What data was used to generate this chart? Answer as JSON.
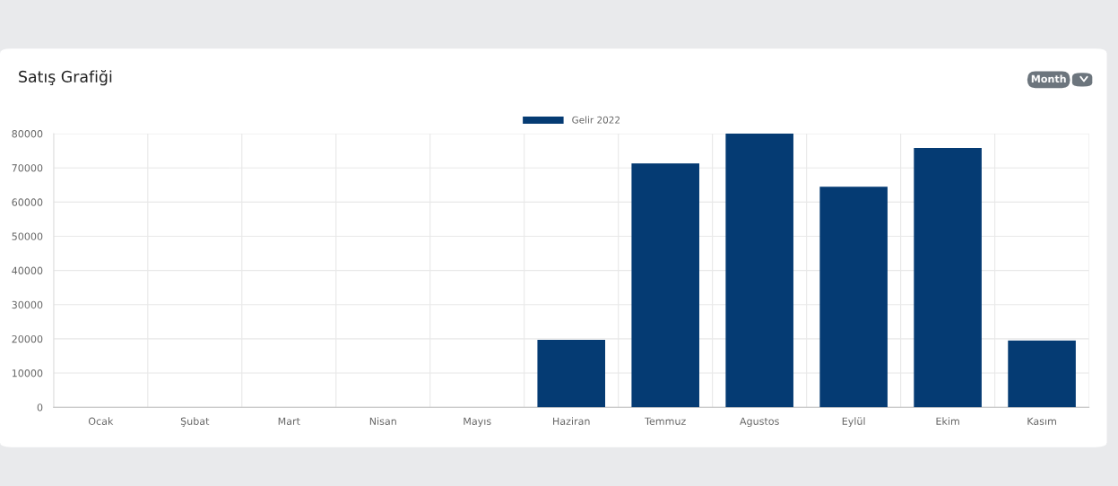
{
  "chart_data": {
    "type": "bar",
    "title": "Satış Grafiği",
    "annotations": [
      "Month"
    ],
    "categories": [
      "Ocak",
      "Şubat",
      "Mart",
      "Nisan",
      "Mayıs",
      "Haziran",
      "Temmuz",
      "Agustos",
      "Eylül",
      "Ekim",
      "Kasım"
    ],
    "series": [
      {
        "name": "Gelir 2022",
        "color": "#053b73",
        "values": [
          0,
          0,
          0,
          0,
          0,
          19700,
          71300,
          80000,
          64500,
          75800,
          19500
        ]
      }
    ],
    "ylim": [
      0,
      80000
    ],
    "yticks": [
      0,
      10000,
      20000,
      30000,
      40000,
      50000,
      60000,
      70000,
      80000
    ],
    "grid": true,
    "legend": "top"
  }
}
